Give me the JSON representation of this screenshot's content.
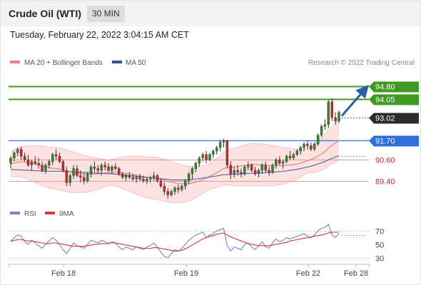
{
  "header": {
    "title": "Crude Oil (WTI)",
    "timeframe": "30 MIN"
  },
  "datetime": "Tuesday, February 22, 2022 3:04:15 AM CET",
  "legend": {
    "ma20": "MA 20 + Bollinger Bands",
    "ma50": "MA 50",
    "credit": "Research © 2022 Trading Central"
  },
  "rsi_legend": {
    "rsi": "RSI",
    "ma9": "9MA"
  },
  "colors": {
    "up": "#2f8a2f",
    "down": "#c62828",
    "ma20": "#f08080",
    "ma50": "#5b6aa5",
    "bands": "#fde2e2",
    "blue_level": "#2f6fdb",
    "arrow": "#2a5ea8",
    "rsi": "#6e86d6",
    "rsi_ma": "#d43a3a"
  },
  "chart_data": {
    "type": "candlestick",
    "instrument": "Crude Oil (WTI)",
    "timeframe": "30 MIN",
    "x_labels": [
      "Feb 18",
      "Feb 19",
      "Feb 22",
      "Feb 28"
    ],
    "y_range": [
      88.3,
      95.6
    ],
    "levels": [
      {
        "value": 94.8,
        "label": "94.80",
        "style": "green-solid"
      },
      {
        "value": 94.05,
        "label": "94.05",
        "style": "green-solid"
      },
      {
        "value": 93.02,
        "label": "93.02",
        "style": "current-dotted"
      },
      {
        "value": 91.7,
        "label": "91.70",
        "style": "blue-solid"
      },
      {
        "value": 90.6,
        "label": "90.60",
        "style": "red-thin"
      },
      {
        "value": 89.4,
        "label": "89.40",
        "style": "red-thin"
      }
    ],
    "forecast_arrow": {
      "from": 93.1,
      "to": 94.8
    },
    "candles": [
      [
        90.4,
        90.8,
        90.1,
        90.7
      ],
      [
        90.7,
        91.1,
        90.5,
        91.0
      ],
      [
        91.0,
        91.3,
        90.8,
        91.2
      ],
      [
        91.2,
        91.35,
        90.6,
        90.8
      ],
      [
        90.8,
        91.0,
        90.5,
        90.6
      ],
      [
        90.6,
        90.9,
        90.2,
        90.3
      ],
      [
        90.3,
        90.6,
        90.0,
        90.5
      ],
      [
        90.5,
        90.8,
        90.3,
        90.4
      ],
      [
        90.4,
        90.7,
        90.1,
        90.3
      ],
      [
        90.3,
        90.5,
        89.9,
        90.0
      ],
      [
        90.0,
        90.4,
        89.8,
        90.3
      ],
      [
        90.3,
        90.6,
        90.1,
        90.5
      ],
      [
        90.5,
        91.0,
        90.3,
        90.9
      ],
      [
        90.9,
        91.2,
        90.6,
        90.8
      ],
      [
        90.8,
        91.0,
        90.4,
        90.5
      ],
      [
        90.5,
        90.6,
        89.9,
        90.0
      ],
      [
        90.0,
        90.2,
        89.1,
        89.3
      ],
      [
        89.3,
        89.8,
        89.1,
        89.7
      ],
      [
        89.7,
        90.3,
        89.5,
        90.1
      ],
      [
        90.1,
        90.3,
        89.6,
        89.7
      ],
      [
        89.7,
        90.0,
        89.3,
        89.6
      ],
      [
        89.6,
        89.8,
        89.2,
        89.4
      ],
      [
        89.4,
        89.9,
        89.3,
        89.8
      ],
      [
        89.8,
        90.3,
        89.6,
        90.2
      ],
      [
        90.2,
        90.5,
        89.9,
        90.1
      ],
      [
        90.1,
        90.3,
        89.8,
        90.0
      ],
      [
        90.0,
        90.4,
        89.7,
        90.3
      ],
      [
        90.3,
        90.5,
        90.0,
        90.2
      ],
      [
        90.2,
        90.4,
        89.9,
        90.0
      ],
      [
        90.0,
        90.3,
        89.8,
        90.2
      ],
      [
        90.2,
        90.4,
        90.0,
        90.1
      ],
      [
        90.1,
        90.2,
        89.7,
        89.8
      ],
      [
        89.8,
        89.9,
        89.5,
        89.6
      ],
      [
        89.6,
        89.8,
        89.4,
        89.7
      ],
      [
        89.7,
        89.9,
        89.5,
        89.6
      ],
      [
        89.6,
        89.8,
        89.4,
        89.5
      ],
      [
        89.5,
        89.7,
        89.3,
        89.6
      ],
      [
        89.6,
        89.8,
        89.4,
        89.5
      ],
      [
        89.5,
        89.7,
        89.3,
        89.4
      ],
      [
        89.4,
        89.6,
        89.2,
        89.5
      ],
      [
        89.5,
        89.7,
        89.3,
        89.6
      ],
      [
        89.6,
        89.9,
        89.4,
        89.7
      ],
      [
        89.7,
        89.8,
        89.3,
        89.4
      ],
      [
        89.4,
        89.5,
        89.0,
        89.1
      ],
      [
        89.1,
        89.3,
        88.6,
        88.8
      ],
      [
        88.8,
        89.0,
        88.4,
        88.6
      ],
      [
        88.6,
        88.9,
        88.5,
        88.8
      ],
      [
        88.8,
        89.1,
        88.6,
        89.0
      ],
      [
        89.0,
        89.2,
        88.7,
        88.9
      ],
      [
        88.9,
        89.2,
        88.8,
        89.1
      ],
      [
        89.1,
        89.5,
        88.9,
        89.4
      ],
      [
        89.4,
        89.9,
        89.2,
        89.8
      ],
      [
        89.8,
        90.2,
        89.5,
        90.1
      ],
      [
        90.1,
        90.5,
        89.9,
        90.4
      ],
      [
        90.4,
        90.8,
        90.2,
        90.7
      ],
      [
        90.7,
        91.0,
        90.5,
        90.9
      ],
      [
        90.9,
        91.1,
        90.4,
        90.6
      ],
      [
        90.6,
        91.0,
        90.5,
        90.9
      ],
      [
        90.9,
        91.2,
        90.7,
        91.1
      ],
      [
        91.1,
        91.4,
        90.9,
        91.3
      ],
      [
        91.3,
        91.75,
        91.1,
        91.6
      ],
      [
        91.6,
        91.8,
        91.3,
        91.7
      ],
      [
        91.7,
        91.75,
        90.1,
        90.3
      ],
      [
        90.3,
        90.5,
        89.5,
        89.8
      ],
      [
        89.8,
        90.2,
        89.6,
        90.0
      ],
      [
        90.0,
        90.3,
        89.7,
        89.9
      ],
      [
        89.9,
        90.1,
        89.6,
        89.8
      ],
      [
        89.8,
        90.3,
        89.7,
        90.2
      ],
      [
        90.2,
        90.5,
        90.0,
        90.3
      ],
      [
        90.3,
        90.4,
        89.9,
        90.0
      ],
      [
        90.0,
        90.2,
        89.7,
        89.8
      ],
      [
        89.8,
        90.1,
        89.6,
        90.0
      ],
      [
        90.0,
        90.4,
        89.8,
        90.3
      ],
      [
        90.3,
        90.5,
        89.9,
        90.0
      ],
      [
        90.0,
        90.2,
        89.7,
        89.9
      ],
      [
        89.9,
        90.4,
        89.8,
        90.3
      ],
      [
        90.3,
        90.7,
        90.1,
        90.6
      ],
      [
        90.6,
        90.8,
        90.3,
        90.4
      ],
      [
        90.4,
        90.6,
        90.1,
        90.5
      ],
      [
        90.5,
        90.9,
        90.4,
        90.8
      ],
      [
        90.8,
        91.1,
        90.6,
        90.7
      ],
      [
        90.7,
        91.0,
        90.6,
        90.9
      ],
      [
        90.9,
        91.2,
        90.8,
        91.1
      ],
      [
        91.1,
        91.4,
        90.9,
        91.3
      ],
      [
        91.3,
        91.6,
        91.1,
        91.5
      ],
      [
        91.5,
        91.7,
        91.2,
        91.4
      ],
      [
        91.4,
        91.6,
        91.1,
        91.2
      ],
      [
        91.2,
        91.6,
        91.1,
        91.5
      ],
      [
        91.5,
        92.1,
        91.4,
        92.0
      ],
      [
        92.0,
        92.6,
        91.9,
        92.5
      ],
      [
        92.5,
        92.9,
        92.3,
        92.6
      ],
      [
        92.6,
        94.0,
        92.4,
        93.9
      ],
      [
        93.9,
        94.1,
        92.8,
        93.0
      ],
      [
        93.0,
        93.3,
        92.6,
        92.8
      ],
      [
        92.8,
        93.4,
        92.7,
        93.3
      ]
    ],
    "ma20": [
      90.35,
      90.42,
      90.46,
      90.48,
      90.47,
      90.44,
      90.4,
      90.36,
      90.32,
      90.26,
      90.2,
      90.15,
      90.12,
      90.1,
      90.08,
      90.03,
      89.97,
      89.92,
      89.89,
      89.86,
      89.83,
      89.8,
      89.78,
      89.78,
      89.79,
      89.8,
      89.82,
      89.84,
      89.86,
      89.88,
      89.9,
      89.89,
      89.86,
      89.83,
      89.8,
      89.76,
      89.72,
      89.68,
      89.64,
      89.6,
      89.57,
      89.56,
      89.53,
      89.49,
      89.44,
      89.38,
      89.33,
      89.29,
      89.26,
      89.24,
      89.23,
      89.24,
      89.28,
      89.33,
      89.4,
      89.48,
      89.56,
      89.65,
      89.75,
      89.86,
      89.98,
      90.1,
      90.16,
      90.18,
      90.2,
      90.22,
      90.25,
      90.28,
      90.31,
      90.33,
      90.33,
      90.32,
      90.31,
      90.29,
      90.27,
      90.26,
      90.26,
      90.26,
      90.27,
      90.29,
      90.31,
      90.33,
      90.36,
      90.41,
      90.48,
      90.55,
      90.62,
      90.7,
      90.8,
      90.93,
      91.07,
      91.27,
      91.42,
      91.56,
      91.7
    ],
    "ma50": [
      90.05,
      90.04,
      90.03,
      90.02,
      90.01,
      90.0,
      89.99,
      89.98,
      89.97,
      89.96,
      89.95,
      89.95,
      89.95,
      89.95,
      89.95,
      89.94,
      89.93,
      89.92,
      89.91,
      89.9,
      89.89,
      89.88,
      89.87,
      89.86,
      89.85,
      89.84,
      89.83,
      89.82,
      89.81,
      89.8,
      89.78,
      89.76,
      89.74,
      89.72,
      89.7,
      89.68,
      89.66,
      89.64,
      89.62,
      89.6,
      89.58,
      89.56,
      89.54,
      89.52,
      89.5,
      89.48,
      89.46,
      89.45,
      89.45,
      89.45,
      89.46,
      89.47,
      89.49,
      89.51,
      89.53,
      89.56,
      89.59,
      89.62,
      89.65,
      89.68,
      89.72,
      89.75,
      89.76,
      89.77,
      89.78,
      89.79,
      89.8,
      89.81,
      89.82,
      89.83,
      89.84,
      89.85,
      89.86,
      89.87,
      89.88,
      89.89,
      89.91,
      89.93,
      89.95,
      89.97,
      90.0,
      90.03,
      90.06,
      90.1,
      90.14,
      90.19,
      90.24,
      90.3,
      90.36,
      90.43,
      90.5,
      90.6,
      90.68,
      90.76,
      90.84
    ],
    "rsi": {
      "y_ticks": [
        70,
        50,
        30
      ],
      "y_range": [
        20,
        84
      ],
      "rsi": [
        55,
        60,
        64,
        62,
        54,
        50,
        56,
        52,
        48,
        44,
        50,
        55,
        60,
        56,
        50,
        42,
        36,
        44,
        52,
        48,
        46,
        44,
        50,
        56,
        54,
        52,
        56,
        54,
        50,
        54,
        52,
        46,
        42,
        46,
        44,
        42,
        46,
        44,
        42,
        46,
        48,
        52,
        46,
        38,
        32,
        30,
        36,
        42,
        40,
        44,
        50,
        56,
        60,
        64,
        66,
        68,
        60,
        64,
        66,
        70,
        72,
        74,
        48,
        40,
        46,
        44,
        42,
        50,
        52,
        46,
        42,
        48,
        54,
        46,
        44,
        52,
        58,
        54,
        56,
        60,
        58,
        60,
        62,
        64,
        66,
        62,
        60,
        64,
        70,
        74,
        75,
        80,
        64,
        60,
        66
      ],
      "ma9": [
        54,
        56,
        57,
        57,
        56,
        55,
        55,
        54,
        53,
        52,
        51,
        51,
        52,
        52,
        51,
        50,
        49,
        48,
        47,
        47,
        47,
        47,
        48,
        49,
        50,
        50,
        51,
        51,
        52,
        52,
        52,
        51,
        50,
        49,
        48,
        47,
        46,
        45,
        44,
        44,
        44,
        45,
        45,
        44,
        43,
        42,
        41,
        40,
        40,
        41,
        43,
        46,
        49,
        52,
        55,
        58,
        60,
        62,
        63,
        65,
        66,
        67,
        64,
        61,
        59,
        57,
        55,
        53,
        51,
        50,
        49,
        48,
        48,
        48,
        48,
        49,
        50,
        51,
        52,
        53,
        55,
        56,
        57,
        58,
        59,
        60,
        61,
        62,
        63,
        64,
        65,
        67,
        68,
        68,
        68
      ]
    }
  }
}
